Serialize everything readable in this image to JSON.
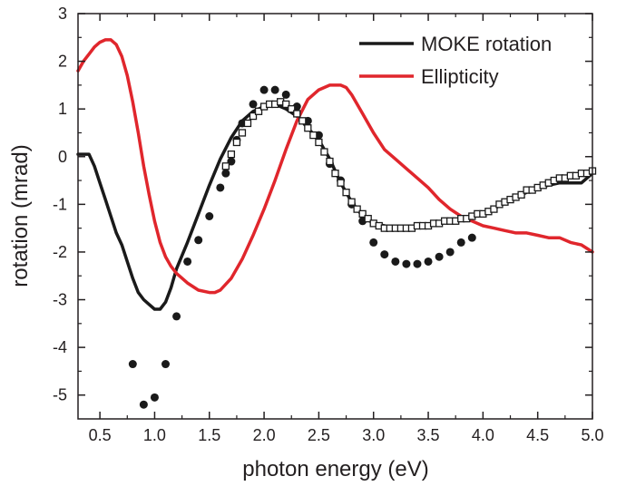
{
  "chart_data": {
    "type": "line",
    "title": "",
    "xlabel": "photon energy (eV)",
    "ylabel": "rotation (mrad)",
    "xlim": [
      0.3,
      5.0
    ],
    "ylim": [
      -5.5,
      3.0
    ],
    "x_ticks": [
      "0.5",
      "1.0",
      "1.5",
      "2.0",
      "2.5",
      "3.0",
      "3.5",
      "4.0",
      "4.5",
      "5.0"
    ],
    "y_ticks": [
      "3",
      "2",
      "1",
      "0",
      "-1",
      "-2",
      "-3",
      "-4",
      "-5"
    ],
    "grid": false,
    "legend_position": "top-right",
    "series": [
      {
        "name": "MOKE rotation",
        "kind": "line",
        "color": "#1a1a1a",
        "x": [
          0.3,
          0.35,
          0.4,
          0.45,
          0.5,
          0.55,
          0.6,
          0.65,
          0.7,
          0.75,
          0.8,
          0.85,
          0.9,
          0.95,
          1.0,
          1.05,
          1.1,
          1.15,
          1.2,
          1.3,
          1.4,
          1.5,
          1.6,
          1.7,
          1.8,
          1.9,
          2.0,
          2.1,
          2.2,
          2.3,
          2.4,
          2.5,
          2.6,
          2.7,
          2.8,
          2.9,
          3.0,
          3.1,
          3.2,
          3.3,
          3.4,
          3.5,
          3.6,
          3.7,
          3.8,
          3.9,
          4.0,
          4.1,
          4.2,
          4.3,
          4.4,
          4.5,
          4.6,
          4.7,
          4.8,
          4.9,
          5.0
        ],
        "y": [
          0.05,
          0.05,
          0.05,
          -0.2,
          -0.55,
          -0.9,
          -1.25,
          -1.6,
          -1.85,
          -2.2,
          -2.55,
          -2.85,
          -3.0,
          -3.1,
          -3.2,
          -3.2,
          -3.05,
          -2.75,
          -2.35,
          -1.8,
          -1.2,
          -0.6,
          -0.05,
          0.4,
          0.75,
          0.95,
          1.05,
          1.1,
          1.0,
          0.85,
          0.6,
          0.35,
          -0.05,
          -0.55,
          -0.95,
          -1.25,
          -1.4,
          -1.45,
          -1.5,
          -1.5,
          -1.45,
          -1.45,
          -1.4,
          -1.35,
          -1.3,
          -1.25,
          -1.2,
          -1.1,
          -0.95,
          -0.85,
          -0.75,
          -0.65,
          -0.6,
          -0.55,
          -0.55,
          -0.55,
          -0.35
        ]
      },
      {
        "name": "Ellipticity",
        "kind": "line",
        "color": "#e0262c",
        "x": [
          0.3,
          0.35,
          0.4,
          0.45,
          0.5,
          0.55,
          0.6,
          0.65,
          0.7,
          0.75,
          0.8,
          0.85,
          0.9,
          0.95,
          1.0,
          1.05,
          1.1,
          1.15,
          1.2,
          1.3,
          1.4,
          1.5,
          1.55,
          1.6,
          1.7,
          1.8,
          1.9,
          2.0,
          2.1,
          2.2,
          2.3,
          2.4,
          2.5,
          2.6,
          2.7,
          2.75,
          2.8,
          2.9,
          3.0,
          3.1,
          3.2,
          3.3,
          3.4,
          3.5,
          3.6,
          3.7,
          3.8,
          3.9,
          4.0,
          4.1,
          4.2,
          4.3,
          4.4,
          4.5,
          4.6,
          4.7,
          4.8,
          4.9,
          5.0
        ],
        "y": [
          1.8,
          2.0,
          2.15,
          2.3,
          2.4,
          2.45,
          2.45,
          2.35,
          2.1,
          1.7,
          1.15,
          0.5,
          -0.2,
          -0.8,
          -1.35,
          -1.8,
          -2.1,
          -2.3,
          -2.45,
          -2.65,
          -2.8,
          -2.85,
          -2.85,
          -2.8,
          -2.55,
          -2.15,
          -1.65,
          -1.1,
          -0.5,
          0.15,
          0.75,
          1.2,
          1.4,
          1.5,
          1.5,
          1.45,
          1.3,
          0.9,
          0.5,
          0.15,
          -0.05,
          -0.25,
          -0.45,
          -0.65,
          -0.9,
          -1.1,
          -1.25,
          -1.35,
          -1.45,
          -1.5,
          -1.55,
          -1.6,
          -1.6,
          -1.65,
          -1.7,
          -1.7,
          -1.8,
          -1.85,
          -2.0
        ]
      },
      {
        "name": "",
        "kind": "scatter",
        "marker": "filled-circle",
        "color": "#1a1a1a",
        "x": [
          0.8,
          0.9,
          1.0,
          1.1,
          1.2,
          1.3,
          1.4,
          1.5,
          1.6,
          1.65,
          1.7,
          1.75,
          1.8,
          1.9,
          2.0,
          2.1,
          2.2,
          2.3,
          2.4,
          2.5,
          2.6,
          2.7,
          2.8,
          2.9,
          3.0,
          3.1,
          3.2,
          3.3,
          3.4,
          3.5,
          3.6,
          3.7,
          3.8,
          3.9
        ],
        "y": [
          -4.35,
          -5.2,
          -5.05,
          -4.35,
          -3.35,
          -2.2,
          -1.75,
          -1.25,
          -0.65,
          -0.35,
          -0.1,
          0.35,
          0.7,
          1.1,
          1.4,
          1.4,
          1.3,
          1.05,
          0.75,
          0.45,
          -0.15,
          -0.5,
          -1.0,
          -1.35,
          -1.8,
          -2.05,
          -2.2,
          -2.25,
          -2.25,
          -2.2,
          -2.1,
          -2.0,
          -1.8,
          -1.7
        ]
      },
      {
        "name": "",
        "kind": "scatter",
        "marker": "open-square",
        "color": "#1a1a1a",
        "x": [
          1.65,
          1.7,
          1.75,
          1.8,
          1.85,
          1.9,
          1.95,
          2.0,
          2.05,
          2.1,
          2.15,
          2.2,
          2.25,
          2.3,
          2.35,
          2.4,
          2.45,
          2.5,
          2.55,
          2.6,
          2.65,
          2.7,
          2.75,
          2.8,
          2.85,
          2.9,
          2.95,
          3.0,
          3.05,
          3.1,
          3.15,
          3.2,
          3.25,
          3.3,
          3.35,
          3.4,
          3.45,
          3.5,
          3.55,
          3.6,
          3.65,
          3.7,
          3.75,
          3.8,
          3.85,
          3.9,
          3.95,
          4.0,
          4.05,
          4.1,
          4.15,
          4.2,
          4.25,
          4.3,
          4.35,
          4.4,
          4.45,
          4.5,
          4.55,
          4.6,
          4.65,
          4.7,
          4.75,
          4.8,
          4.85,
          4.9,
          4.95,
          5.0
        ],
        "y": [
          -0.2,
          0.05,
          0.3,
          0.5,
          0.7,
          0.85,
          0.95,
          1.05,
          1.1,
          1.1,
          1.15,
          1.1,
          1.0,
          0.9,
          0.75,
          0.6,
          0.45,
          0.3,
          0.1,
          -0.1,
          -0.35,
          -0.55,
          -0.75,
          -0.95,
          -1.1,
          -1.2,
          -1.3,
          -1.4,
          -1.45,
          -1.5,
          -1.5,
          -1.5,
          -1.5,
          -1.5,
          -1.5,
          -1.45,
          -1.45,
          -1.45,
          -1.4,
          -1.4,
          -1.35,
          -1.35,
          -1.35,
          -1.3,
          -1.3,
          -1.25,
          -1.2,
          -1.2,
          -1.15,
          -1.1,
          -1.0,
          -0.95,
          -0.9,
          -0.85,
          -0.8,
          -0.7,
          -0.7,
          -0.65,
          -0.6,
          -0.55,
          -0.5,
          -0.45,
          -0.45,
          -0.4,
          -0.4,
          -0.35,
          -0.35,
          -0.3
        ]
      }
    ]
  }
}
